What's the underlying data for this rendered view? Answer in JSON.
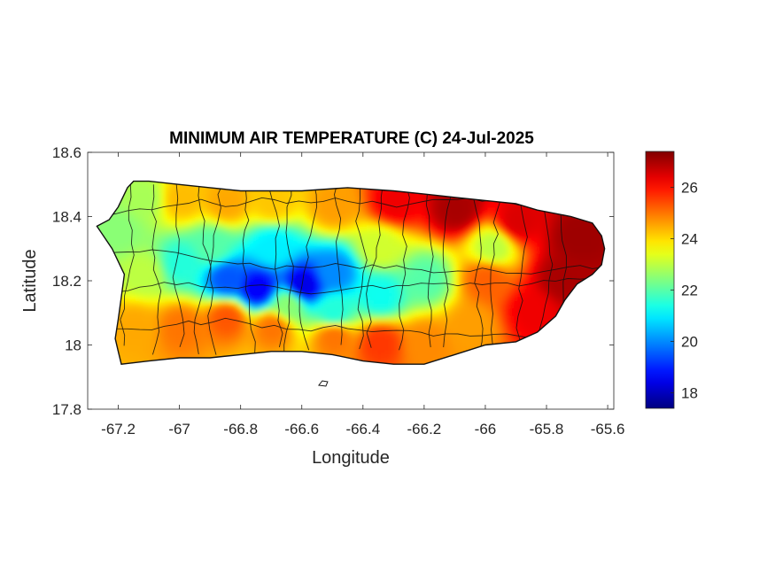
{
  "chart_data": {
    "type": "heatmap",
    "title": "MINIMUM AIR TEMPERATURE (C) 24-Jul-2025",
    "xlabel": "Longitude",
    "ylabel": "Latitude",
    "xlim": [
      -67.3,
      -65.58
    ],
    "ylim": [
      17.8,
      18.6
    ],
    "x_ticks": [
      {
        "value": -67.2,
        "label": "-67.2"
      },
      {
        "value": -67.0,
        "label": "-67"
      },
      {
        "value": -66.8,
        "label": "-66.8"
      },
      {
        "value": -66.6,
        "label": "-66.6"
      },
      {
        "value": -66.4,
        "label": "-66.4"
      },
      {
        "value": -66.2,
        "label": "-66.2"
      },
      {
        "value": -66.0,
        "label": "-66"
      },
      {
        "value": -65.8,
        "label": "-65.8"
      },
      {
        "value": -65.6,
        "label": "-65.6"
      }
    ],
    "y_ticks": [
      {
        "value": 17.8,
        "label": "17.8"
      },
      {
        "value": 18.0,
        "label": "18"
      },
      {
        "value": 18.2,
        "label": "18.2"
      },
      {
        "value": 18.4,
        "label": "18.4"
      },
      {
        "value": 18.6,
        "label": "18.6"
      }
    ],
    "colorbar": {
      "colormap": "jet",
      "range": [
        17.4,
        27.4
      ],
      "ticks": [
        {
          "value": 18,
          "label": "18"
        },
        {
          "value": 20,
          "label": "20"
        },
        {
          "value": 22,
          "label": "22"
        },
        {
          "value": 24,
          "label": "24"
        },
        {
          "value": 26,
          "label": "26"
        }
      ]
    },
    "grid": false,
    "region": "Puerto Rico (main island) with municipality boundaries",
    "outline": [
      [
        -67.27,
        18.37
      ],
      [
        -67.23,
        18.39
      ],
      [
        -67.2,
        18.43
      ],
      [
        -67.17,
        18.49
      ],
      [
        -67.15,
        18.51
      ],
      [
        -67.1,
        18.51
      ],
      [
        -67.0,
        18.5
      ],
      [
        -66.9,
        18.49
      ],
      [
        -66.8,
        18.48
      ],
      [
        -66.7,
        18.48
      ],
      [
        -66.6,
        18.48
      ],
      [
        -66.45,
        18.49
      ],
      [
        -66.3,
        18.48
      ],
      [
        -66.2,
        18.47
      ],
      [
        -66.1,
        18.46
      ],
      [
        -66.0,
        18.45
      ],
      [
        -65.9,
        18.44
      ],
      [
        -65.83,
        18.42
      ],
      [
        -65.72,
        18.4
      ],
      [
        -65.65,
        18.38
      ],
      [
        -65.62,
        18.34
      ],
      [
        -65.61,
        18.3
      ],
      [
        -65.62,
        18.25
      ],
      [
        -65.65,
        18.22
      ],
      [
        -65.7,
        18.19
      ],
      [
        -65.74,
        18.14
      ],
      [
        -65.77,
        18.09
      ],
      [
        -65.83,
        18.04
      ],
      [
        -65.9,
        18.01
      ],
      [
        -66.0,
        18.0
      ],
      [
        -66.1,
        17.97
      ],
      [
        -66.2,
        17.94
      ],
      [
        -66.3,
        17.94
      ],
      [
        -66.4,
        17.95
      ],
      [
        -66.5,
        17.97
      ],
      [
        -66.6,
        17.98
      ],
      [
        -66.7,
        17.98
      ],
      [
        -66.8,
        17.97
      ],
      [
        -66.9,
        17.96
      ],
      [
        -67.0,
        17.96
      ],
      [
        -67.1,
        17.95
      ],
      [
        -67.19,
        17.94
      ],
      [
        -67.2,
        17.98
      ],
      [
        -67.21,
        18.02
      ],
      [
        -67.2,
        18.08
      ],
      [
        -67.19,
        18.15
      ],
      [
        -67.18,
        18.22
      ],
      [
        -67.22,
        18.3
      ],
      [
        -67.27,
        18.37
      ]
    ],
    "field_samples": [
      {
        "lon": -67.2,
        "lat": 18.35,
        "value": 22.5
      },
      {
        "lon": -67.12,
        "lat": 18.45,
        "value": 22.8
      },
      {
        "lon": -67.0,
        "lat": 18.45,
        "value": 24.3
      },
      {
        "lon": -66.85,
        "lat": 18.44,
        "value": 24.5
      },
      {
        "lon": -66.7,
        "lat": 18.44,
        "value": 24.2
      },
      {
        "lon": -66.5,
        "lat": 18.43,
        "value": 24.6
      },
      {
        "lon": -66.3,
        "lat": 18.44,
        "value": 26.3
      },
      {
        "lon": -66.1,
        "lat": 18.42,
        "value": 27.0
      },
      {
        "lon": -65.9,
        "lat": 18.38,
        "value": 26.5
      },
      {
        "lon": -65.7,
        "lat": 18.33,
        "value": 27.1
      },
      {
        "lon": -65.75,
        "lat": 18.2,
        "value": 27.0
      },
      {
        "lon": -65.85,
        "lat": 18.1,
        "value": 26.3
      },
      {
        "lon": -66.0,
        "lat": 18.2,
        "value": 25.2
      },
      {
        "lon": -65.98,
        "lat": 18.3,
        "value": 23.0
      },
      {
        "lon": -66.05,
        "lat": 18.05,
        "value": 24.6
      },
      {
        "lon": -66.2,
        "lat": 18.0,
        "value": 24.8
      },
      {
        "lon": -66.2,
        "lat": 18.2,
        "value": 22.0
      },
      {
        "lon": -66.35,
        "lat": 18.3,
        "value": 23.2
      },
      {
        "lon": -66.35,
        "lat": 18.15,
        "value": 21.3
      },
      {
        "lon": -66.5,
        "lat": 18.22,
        "value": 20.0
      },
      {
        "lon": -66.6,
        "lat": 18.18,
        "value": 18.4
      },
      {
        "lon": -66.75,
        "lat": 18.17,
        "value": 18.6
      },
      {
        "lon": -66.85,
        "lat": 18.2,
        "value": 19.5
      },
      {
        "lon": -67.0,
        "lat": 18.25,
        "value": 21.5
      },
      {
        "lon": -66.9,
        "lat": 18.3,
        "value": 22.0
      },
      {
        "lon": -66.7,
        "lat": 18.3,
        "value": 21.0
      },
      {
        "lon": -67.12,
        "lat": 18.22,
        "value": 23.0
      },
      {
        "lon": -67.15,
        "lat": 18.05,
        "value": 24.5
      },
      {
        "lon": -67.0,
        "lat": 18.05,
        "value": 25.0
      },
      {
        "lon": -66.85,
        "lat": 18.08,
        "value": 25.3
      },
      {
        "lon": -66.7,
        "lat": 18.05,
        "value": 25.0
      },
      {
        "lon": -66.5,
        "lat": 18.02,
        "value": 25.0
      },
      {
        "lon": -66.35,
        "lat": 18.0,
        "value": 25.6
      },
      {
        "lon": -66.5,
        "lat": 18.1,
        "value": 21.5
      },
      {
        "lon": -66.65,
        "lat": 18.12,
        "value": 22.5
      }
    ]
  }
}
